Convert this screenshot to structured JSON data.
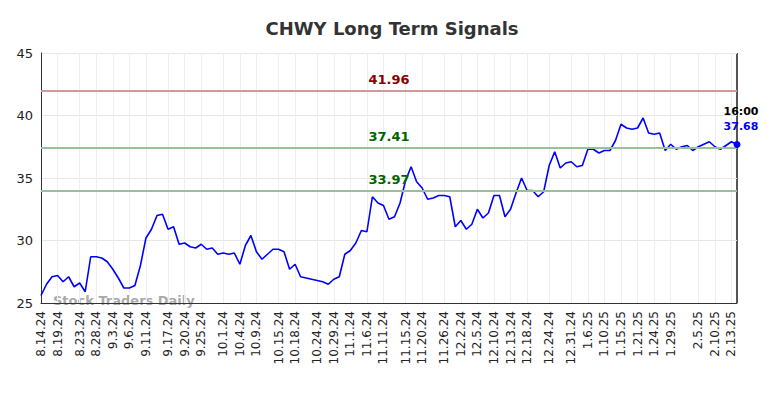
{
  "chart_data": {
    "type": "line",
    "title": "CHWY Long Term Signals",
    "watermark": "Stock Traders Daily",
    "color": "#0000ff",
    "grid": true,
    "ylim": [
      25,
      45
    ],
    "yticks": [
      25,
      30,
      35,
      40,
      45
    ],
    "categories": [
      "8.14.24",
      null,
      null,
      "8.19.24",
      null,
      null,
      null,
      "8.23.24",
      null,
      null,
      "8.28.24",
      null,
      null,
      "9.3.24",
      null,
      null,
      "9.6.24",
      null,
      null,
      "9.11.24",
      null,
      null,
      null,
      "9.17.24",
      null,
      null,
      "9.20.24",
      null,
      null,
      "9.25.24",
      null,
      null,
      null,
      "10.1.24",
      null,
      null,
      "10.4.24",
      null,
      null,
      "10.9.24",
      null,
      null,
      null,
      "10.15.24",
      null,
      null,
      "10.18.24",
      null,
      null,
      null,
      "10.24.24",
      null,
      null,
      "10.29.24",
      null,
      null,
      "11.1.24",
      null,
      null,
      "11.6.24",
      null,
      null,
      "11.11.24",
      null,
      null,
      null,
      "11.15.24",
      null,
      null,
      "11.20.24",
      null,
      null,
      null,
      "11.26.24",
      null,
      null,
      "12.2.24",
      null,
      null,
      "12.5.24",
      null,
      null,
      "12.10.24",
      null,
      null,
      "12.13.24",
      null,
      null,
      "12.18.24",
      null,
      null,
      null,
      "12.24.24",
      null,
      null,
      null,
      "12.31.24",
      null,
      null,
      "1.6.25",
      null,
      null,
      "1.10.25",
      null,
      null,
      "1.15.25",
      null,
      null,
      "1.21.25",
      null,
      null,
      "1.24.25",
      null,
      null,
      "1.29.25",
      null,
      null,
      null,
      null,
      "2.5.25",
      null,
      null,
      "2.10.25",
      null,
      null,
      "2.13.25",
      null
    ],
    "values": [
      25.6,
      26.5,
      27.1,
      27.2,
      26.7,
      27.1,
      26.3,
      26.6,
      25.9,
      28.7,
      28.7,
      28.6,
      28.3,
      27.7,
      27.0,
      26.2,
      26.2,
      26.4,
      28.0,
      30.2,
      30.9,
      32.0,
      32.1,
      30.9,
      31.1,
      29.7,
      29.8,
      29.5,
      29.4,
      29.7,
      29.3,
      29.4,
      28.9,
      29.0,
      28.9,
      29.0,
      28.1,
      29.6,
      30.4,
      29.1,
      28.5,
      28.9,
      29.3,
      29.3,
      29.1,
      27.7,
      28.1,
      27.1,
      27.0,
      26.9,
      26.8,
      26.7,
      26.5,
      26.9,
      27.1,
      28.9,
      29.2,
      29.8,
      30.8,
      30.7,
      33.5,
      33.0,
      32.8,
      31.7,
      31.9,
      33.0,
      34.8,
      35.9,
      34.7,
      34.2,
      33.3,
      33.4,
      33.6,
      33.6,
      33.5,
      31.1,
      31.6,
      30.9,
      31.3,
      32.5,
      31.8,
      32.2,
      33.6,
      33.6,
      31.9,
      32.5,
      33.8,
      35.0,
      34.0,
      34.0,
      33.5,
      33.9,
      36.0,
      37.1,
      35.8,
      36.2,
      36.3,
      35.9,
      36.0,
      37.3,
      37.3,
      37.0,
      37.2,
      37.2,
      38.0,
      39.3,
      39.0,
      38.9,
      39.0,
      39.8,
      38.6,
      38.5,
      38.6,
      37.2,
      37.7,
      37.3,
      37.5,
      37.6,
      37.2,
      37.5,
      37.7,
      37.9,
      37.5,
      37.3,
      37.6,
      37.9,
      37.68
    ],
    "last_point_time": "16:00",
    "reference_lines": [
      {
        "value": 41.96,
        "color": "#8b0000"
      },
      {
        "value": 37.41,
        "color": "#006400"
      },
      {
        "value": 33.97,
        "color": "#006400"
      }
    ]
  }
}
